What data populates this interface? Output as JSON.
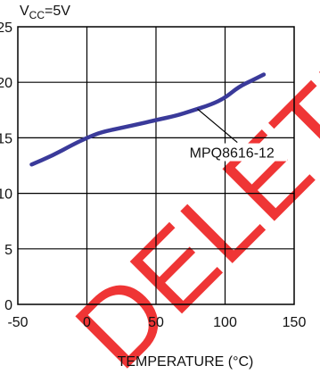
{
  "chart_data": {
    "type": "line",
    "condition": {
      "main": "V",
      "sub": "CC",
      "rest": "=5V"
    },
    "xlabel": "TEMPERATURE (°C)",
    "xlim": [
      -50,
      150
    ],
    "ylim": [
      0,
      25
    ],
    "xticks": [
      "-50",
      "0",
      "50",
      "100",
      "150"
    ],
    "yticks": [
      "25",
      "20",
      "15",
      "10",
      "5",
      "0"
    ],
    "grid": true,
    "series": [
      {
        "name": "MPQ8616-12",
        "color": "#3a3a9a",
        "x": [
          -40,
          -25,
          -10,
          0,
          10,
          25,
          40,
          50,
          65,
          75,
          90,
          100,
          110,
          120,
          128
        ],
        "y": [
          12.6,
          13.4,
          14.4,
          15.0,
          15.5,
          15.9,
          16.3,
          16.6,
          17.0,
          17.4,
          18.0,
          18.6,
          19.6,
          20.2,
          20.7
        ]
      }
    ],
    "annotations": [
      {
        "text": "MPQ8616-12",
        "x": 105,
        "y": 13.3,
        "arrow_to": [
          80,
          17.6
        ]
      }
    ]
  },
  "watermark": "DELETED FOR…"
}
